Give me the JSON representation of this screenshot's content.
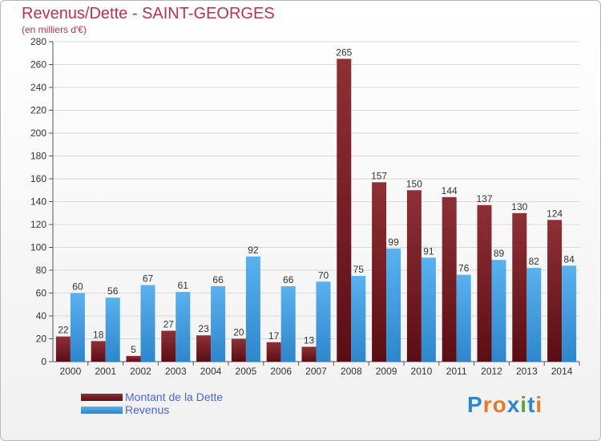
{
  "header": {
    "title": "Revenus/Dette - SAINT-GEORGES",
    "subtitle": "(en milliers d'€)"
  },
  "logo": {
    "text": "Proxiti"
  },
  "colors": {
    "title": "#b5354f",
    "dette": "#7a1e24",
    "revenus": "#3f9fe0",
    "legend_text": "#4a66d6"
  },
  "chart_data": {
    "type": "bar",
    "categories": [
      "2000",
      "2001",
      "2002",
      "2003",
      "2004",
      "2005",
      "2006",
      "2007",
      "2008",
      "2009",
      "2010",
      "2011",
      "2012",
      "2013",
      "2014"
    ],
    "series": [
      {
        "name": "Montant de la Dette",
        "values": [
          22,
          18,
          5,
          27,
          23,
          20,
          17,
          13,
          265,
          157,
          150,
          144,
          137,
          130,
          124
        ]
      },
      {
        "name": "Revenus",
        "values": [
          60,
          56,
          67,
          61,
          66,
          92,
          66,
          70,
          75,
          99,
          91,
          76,
          89,
          82,
          84
        ]
      }
    ],
    "title": "Revenus/Dette - SAINT-GEORGES",
    "ylabel": "(en milliers d'€)",
    "ylim": [
      0,
      280
    ],
    "yticks": [
      0,
      20,
      40,
      60,
      80,
      100,
      120,
      140,
      160,
      180,
      200,
      220,
      240,
      260,
      280
    ],
    "grid": true,
    "legend": "bottom-left"
  }
}
